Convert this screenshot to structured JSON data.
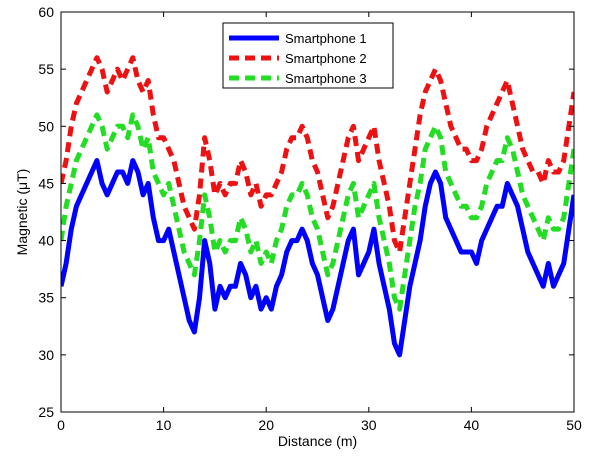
{
  "chart_data": {
    "type": "line",
    "title": "",
    "xlabel": "Distance (m)",
    "ylabel": "Magnetic (μT)",
    "xlim": [
      0,
      50
    ],
    "ylim": [
      25,
      60
    ],
    "xticks": [
      0,
      10,
      20,
      30,
      40,
      50
    ],
    "yticks": [
      25,
      30,
      35,
      40,
      45,
      50,
      55,
      60
    ],
    "grid": false,
    "legend_position": "top-center",
    "series": [
      {
        "name": "Smartphone 1",
        "color": "#0000ff",
        "style": "solid",
        "x": [
          0,
          0.5,
          1,
          1.5,
          2,
          2.5,
          3,
          3.5,
          4,
          4.5,
          5,
          5.5,
          6,
          6.5,
          7,
          7.5,
          8,
          8.5,
          9,
          9.5,
          10,
          10.5,
          11,
          11.5,
          12,
          12.5,
          13,
          13.5,
          14,
          14.5,
          15,
          15.5,
          16,
          16.5,
          17,
          17.5,
          18,
          18.5,
          19,
          19.5,
          20,
          20.5,
          21,
          21.5,
          22,
          22.5,
          23,
          23.5,
          24,
          24.5,
          25,
          25.5,
          26,
          26.5,
          27,
          27.5,
          28,
          28.5,
          29,
          29.5,
          30,
          30.5,
          31,
          31.5,
          32,
          32.5,
          33,
          33.5,
          34,
          34.5,
          35,
          35.5,
          36,
          36.5,
          37,
          37.5,
          38,
          38.5,
          39,
          39.5,
          40,
          40.5,
          41,
          41.5,
          42,
          42.5,
          43,
          43.5,
          44,
          44.5,
          45,
          45.5,
          46,
          46.5,
          47,
          47.5,
          48,
          48.5,
          49,
          49.5,
          50
        ],
        "y": [
          36,
          38,
          41,
          43,
          44,
          45,
          46,
          47,
          45,
          44,
          45,
          46,
          46,
          45,
          47,
          46,
          44,
          45,
          42,
          40,
          40,
          41,
          39,
          37,
          35,
          33,
          32,
          35,
          40,
          38,
          34,
          36,
          35,
          36,
          36,
          38,
          37,
          35,
          36,
          34,
          35,
          34,
          36,
          37,
          39,
          40,
          40,
          41,
          40,
          38,
          37,
          35,
          33,
          34,
          36,
          38,
          40,
          41,
          37,
          38,
          39,
          41,
          38,
          36,
          34,
          31,
          30,
          33,
          36,
          38,
          40,
          43,
          45,
          46,
          45,
          42,
          41,
          40,
          39,
          39,
          39,
          38,
          40,
          41,
          42,
          43,
          43,
          45,
          44,
          43,
          41,
          39,
          38,
          37,
          36,
          38,
          36,
          37,
          38,
          41,
          44
        ],
        "data_name": "series-smartphone-1-line"
      },
      {
        "name": "Smartphone 2",
        "color": "#ee1111",
        "style": "dashed",
        "x": [
          0,
          0.5,
          1,
          1.5,
          2,
          2.5,
          3,
          3.5,
          4,
          4.5,
          5,
          5.5,
          6,
          6.5,
          7,
          7.5,
          8,
          8.5,
          9,
          9.5,
          10,
          10.5,
          11,
          11.5,
          12,
          12.5,
          13,
          13.5,
          14,
          14.5,
          15,
          15.5,
          16,
          16.5,
          17,
          17.5,
          18,
          18.5,
          19,
          19.5,
          20,
          20.5,
          21,
          21.5,
          22,
          22.5,
          23,
          23.5,
          24,
          24.5,
          25,
          25.5,
          26,
          26.5,
          27,
          27.5,
          28,
          28.5,
          29,
          29.5,
          30,
          30.5,
          31,
          31.5,
          32,
          32.5,
          33,
          33.5,
          34,
          34.5,
          35,
          35.5,
          36,
          36.5,
          37,
          37.5,
          38,
          38.5,
          39,
          39.5,
          40,
          40.5,
          41,
          41.5,
          42,
          42.5,
          43,
          43.5,
          44,
          44.5,
          45,
          45.5,
          46,
          46.5,
          47,
          47.5,
          48,
          48.5,
          49,
          49.5,
          50
        ],
        "y": [
          45,
          47,
          50,
          52,
          53,
          54,
          55,
          56,
          55,
          53,
          54,
          55,
          54,
          55,
          56,
          54,
          53,
          54,
          51,
          49,
          49,
          48,
          47,
          45,
          43,
          42,
          41,
          44,
          49,
          47,
          44,
          45,
          44,
          45,
          45,
          47,
          46,
          44,
          45,
          43,
          44,
          44,
          45,
          46,
          48,
          49,
          49,
          50,
          49,
          47,
          46,
          44,
          42,
          43,
          45,
          47,
          49,
          50,
          47,
          48,
          49,
          50,
          47,
          45,
          43,
          40,
          39,
          42,
          45,
          48,
          51,
          53,
          54,
          55,
          54,
          52,
          50,
          49,
          48,
          48,
          47,
          47,
          48,
          50,
          51,
          52,
          53,
          54,
          52,
          50,
          48,
          47,
          46,
          46,
          45,
          47,
          46,
          46,
          47,
          50,
          53
        ],
        "data_name": "series-smartphone-2-line"
      },
      {
        "name": "Smartphone 3",
        "color": "#22dd22",
        "style": "dashed",
        "x": [
          0,
          0.5,
          1,
          1.5,
          2,
          2.5,
          3,
          3.5,
          4,
          4.5,
          5,
          5.5,
          6,
          6.5,
          7,
          7.5,
          8,
          8.5,
          9,
          9.5,
          10,
          10.5,
          11,
          11.5,
          12,
          12.5,
          13,
          13.5,
          14,
          14.5,
          15,
          15.5,
          16,
          16.5,
          17,
          17.5,
          18,
          18.5,
          19,
          19.5,
          20,
          20.5,
          21,
          21.5,
          22,
          22.5,
          23,
          23.5,
          24,
          24.5,
          25,
          25.5,
          26,
          26.5,
          27,
          27.5,
          28,
          28.5,
          29,
          29.5,
          30,
          30.5,
          31,
          31.5,
          32,
          32.5,
          33,
          33.5,
          34,
          34.5,
          35,
          35.5,
          36,
          36.5,
          37,
          37.5,
          38,
          38.5,
          39,
          39.5,
          40,
          40.5,
          41,
          41.5,
          42,
          42.5,
          43,
          43.5,
          44,
          44.5,
          45,
          45.5,
          46,
          46.5,
          47,
          47.5,
          48,
          48.5,
          49,
          49.5,
          50
        ],
        "y": [
          40,
          43,
          45,
          47,
          48,
          49,
          50,
          51,
          50,
          48,
          49,
          50,
          50,
          49,
          51,
          50,
          48,
          49,
          46,
          45,
          44,
          45,
          43,
          41,
          39,
          38,
          37,
          40,
          44,
          42,
          39,
          40,
          39,
          40,
          40,
          42,
          41,
          39,
          40,
          38,
          39,
          38,
          40,
          41,
          43,
          44,
          44,
          45,
          44,
          42,
          41,
          39,
          37,
          38,
          40,
          42,
          44,
          45,
          42,
          43,
          44,
          45,
          42,
          40,
          38,
          35,
          34,
          37,
          40,
          43,
          45,
          48,
          49,
          50,
          49,
          46,
          45,
          44,
          43,
          43,
          42,
          42,
          43,
          45,
          46,
          47,
          47,
          49,
          48,
          46,
          44,
          43,
          42,
          41,
          40,
          42,
          41,
          41,
          42,
          45,
          48
        ],
        "data_name": "series-smartphone-3-line"
      }
    ]
  }
}
